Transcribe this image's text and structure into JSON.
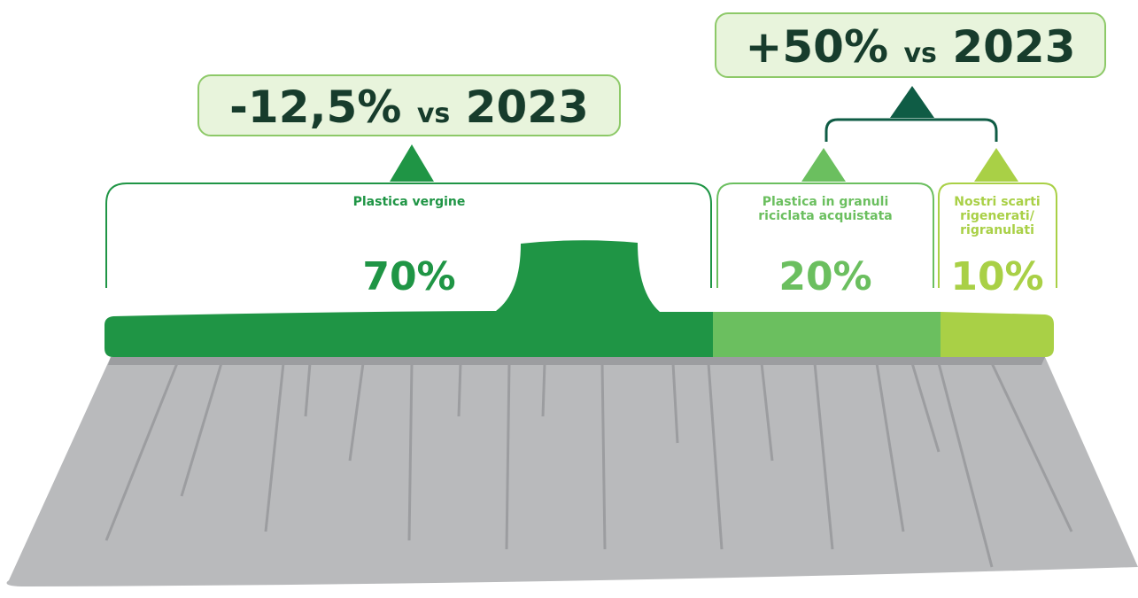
{
  "callouts": [
    {
      "change": "-12,5%",
      "vs": "vs",
      "year": "2023"
    },
    {
      "change": "+50%",
      "vs": "vs",
      "year": "2023"
    }
  ],
  "segments": [
    {
      "label_lines": [
        "Plastica vergine"
      ],
      "share": "70%"
    },
    {
      "label_lines": [
        "Plastica in granuli",
        "riciclata acquistata"
      ],
      "share": "20%"
    },
    {
      "label_lines": [
        "Nostri scarti",
        "rigenerati/",
        "rigranulati"
      ],
      "share": "10%"
    }
  ]
}
